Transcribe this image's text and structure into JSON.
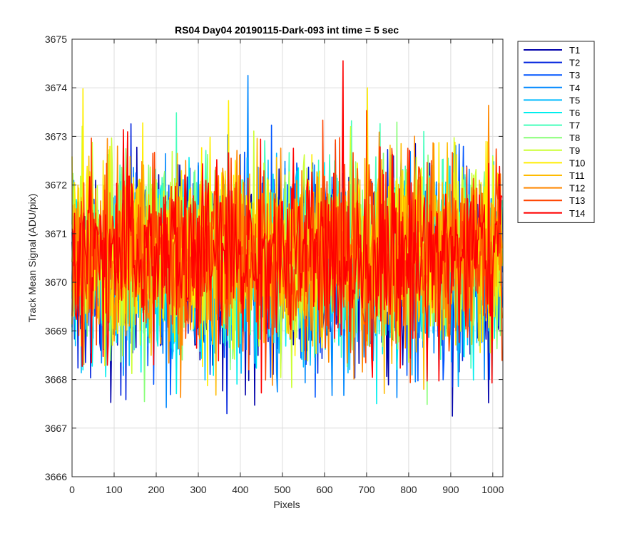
{
  "chart_data": {
    "type": "line",
    "title": "RS04 Day04 20190115-Dark-093 int time = 5 sec",
    "xlabel": "Pixels",
    "ylabel": "Track Mean Signal (ADU/pix)",
    "xlim": [
      0,
      1024
    ],
    "ylim": [
      3666,
      3675
    ],
    "xticks": [
      0,
      100,
      200,
      300,
      400,
      500,
      600,
      700,
      800,
      900,
      1000
    ],
    "yticks": [
      3666,
      3667,
      3668,
      3669,
      3670,
      3671,
      3672,
      3673,
      3674,
      3675
    ],
    "grid": true,
    "legend_position": "outside-top-right",
    "n_pixels": 1024,
    "series_mean": 3670.5,
    "series_std": 1.1,
    "series": [
      {
        "name": "T1",
        "color": "#0000AA"
      },
      {
        "name": "T2",
        "color": "#0022DD"
      },
      {
        "name": "T3",
        "color": "#0055FF"
      },
      {
        "name": "T4",
        "color": "#0088FF"
      },
      {
        "name": "T5",
        "color": "#00BBFF"
      },
      {
        "name": "T6",
        "color": "#00EEEE"
      },
      {
        "name": "T7",
        "color": "#44FFBB"
      },
      {
        "name": "T8",
        "color": "#88FF77"
      },
      {
        "name": "T9",
        "color": "#CCFF33"
      },
      {
        "name": "T10",
        "color": "#FFEE00"
      },
      {
        "name": "T11",
        "color": "#FFBB00"
      },
      {
        "name": "T12",
        "color": "#FF8800"
      },
      {
        "name": "T13",
        "color": "#FF4400"
      },
      {
        "name": "T14",
        "color": "#FF0000"
      }
    ]
  }
}
